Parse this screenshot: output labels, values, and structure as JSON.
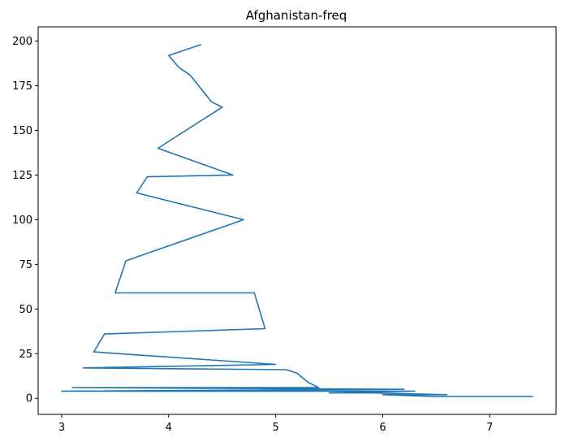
{
  "chart_data": {
    "type": "line",
    "title": "Afghanistan-freq",
    "xlabel": "",
    "ylabel": "",
    "xlim": [
      2.78,
      7.62
    ],
    "ylim": [
      -9,
      208
    ],
    "xticks": [
      3,
      4,
      5,
      6,
      7
    ],
    "yticks": [
      0,
      25,
      50,
      75,
      100,
      125,
      150,
      175,
      200
    ],
    "grid": false,
    "legend": "none",
    "colors": {
      "series": "#1f77b4"
    },
    "series": [
      {
        "x": [
          4.3,
          4.0,
          4.1,
          4.2,
          4.4,
          4.5,
          3.9,
          4.6,
          3.8,
          3.7,
          4.7,
          3.6,
          3.5,
          4.8,
          4.9,
          3.4,
          3.3,
          5.0,
          3.2,
          5.1,
          5.2,
          5.3,
          5.4,
          3.1,
          6.2,
          3.0,
          6.3,
          5.5,
          5.9,
          6.6,
          6.0,
          6.5,
          7.4
        ],
        "y": [
          198,
          192,
          185,
          181,
          166,
          163,
          140,
          125,
          124,
          115,
          100,
          77,
          59,
          59,
          39,
          36,
          26,
          19,
          17,
          16,
          14,
          9,
          6,
          6,
          5,
          4,
          4,
          3,
          3,
          2,
          2,
          1,
          1
        ]
      }
    ]
  }
}
